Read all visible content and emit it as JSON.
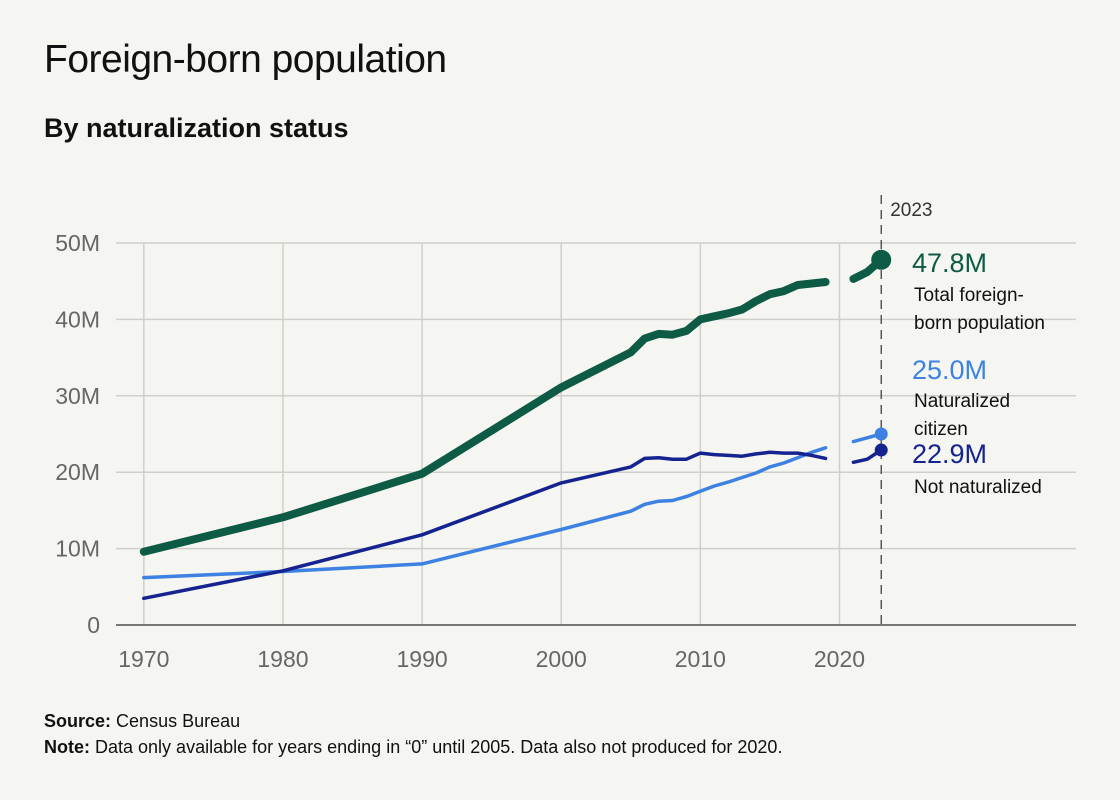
{
  "header": {
    "title": "Foreign-born population",
    "subtitle": "By naturalization status"
  },
  "footer": {
    "source_label": "Source:",
    "source_text": "Census Bureau",
    "note_label": "Note:",
    "note_text": "Data only available for years ending in “0” until 2005. Data also not produced for 2020."
  },
  "chart_data": {
    "type": "line",
    "title": "Foreign-born population",
    "subtitle": "By naturalization status",
    "xlabel": "",
    "ylabel": "",
    "xlim": [
      1968,
      2037
    ],
    "ylim": [
      0,
      50
    ],
    "x_ticks": [
      1970,
      1980,
      1990,
      2000,
      2010,
      2020
    ],
    "x_tick_labels": [
      "1970",
      "1980",
      "1990",
      "2000",
      "2010",
      "2020"
    ],
    "y_ticks": [
      0,
      10,
      20,
      30,
      40,
      50
    ],
    "y_tick_labels": [
      "0",
      "10M",
      "20M",
      "30M",
      "40M",
      "50M"
    ],
    "grid": true,
    "reference_line": {
      "x": 2023,
      "label": "2023"
    },
    "series": [
      {
        "key": "total",
        "label_lines": [
          "Total foreign-",
          "born population"
        ],
        "value_label": "47.8M",
        "color": "#0d5a45",
        "highlight_end": true,
        "x": [
          1970,
          1980,
          1990,
          2000,
          2005,
          2006,
          2007,
          2008,
          2009,
          2010,
          2011,
          2012,
          2013,
          2014,
          2015,
          2016,
          2017,
          2018,
          2019,
          2021,
          2022,
          2023
        ],
        "y": [
          9.6,
          14.1,
          19.8,
          31.1,
          35.7,
          37.5,
          38.1,
          38.0,
          38.5,
          40.0,
          40.4,
          40.8,
          41.3,
          42.4,
          43.3,
          43.7,
          44.5,
          44.7,
          44.9,
          45.3,
          46.2,
          47.8
        ]
      },
      {
        "key": "naturalized",
        "label_lines": [
          "Naturalized",
          "citizen"
        ],
        "value_label": "25.0M",
        "color": "#3d82e2",
        "highlight_end": false,
        "x": [
          1970,
          1980,
          1990,
          2000,
          2005,
          2006,
          2007,
          2008,
          2009,
          2010,
          2011,
          2012,
          2013,
          2014,
          2015,
          2016,
          2017,
          2018,
          2019,
          2021,
          2022,
          2023
        ],
        "y": [
          6.2,
          7.0,
          8.0,
          12.5,
          14.9,
          15.8,
          16.2,
          16.3,
          16.8,
          17.5,
          18.2,
          18.7,
          19.3,
          19.9,
          20.7,
          21.2,
          21.9,
          22.6,
          23.2,
          24.0,
          24.5,
          25.0
        ]
      },
      {
        "key": "not_naturalized",
        "label_lines": [
          "Not naturalized"
        ],
        "value_label": "22.9M",
        "color": "#14238f",
        "highlight_end": false,
        "x": [
          1970,
          1980,
          1990,
          2000,
          2005,
          2006,
          2007,
          2008,
          2009,
          2010,
          2011,
          2012,
          2013,
          2014,
          2015,
          2016,
          2017,
          2018,
          2019,
          2021,
          2022,
          2023
        ],
        "y": [
          3.5,
          7.1,
          11.8,
          18.6,
          20.7,
          21.8,
          21.9,
          21.7,
          21.7,
          22.5,
          22.3,
          22.2,
          22.1,
          22.4,
          22.6,
          22.5,
          22.5,
          22.2,
          21.8,
          21.3,
          21.7,
          22.9
        ]
      }
    ]
  }
}
